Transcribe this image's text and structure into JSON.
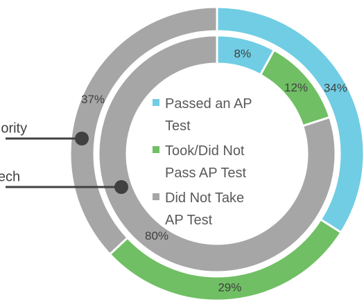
{
  "chart_data": {
    "type": "donut",
    "categories": [
      "Passed an AP Test",
      "Took/Did Not Pass AP Test",
      "Did Not Take AP Test"
    ],
    "colors": [
      "#70cde4",
      "#70bf64",
      "#a6a6a6"
    ],
    "rings": [
      {
        "name": "Priority",
        "values": [
          34,
          29,
          37
        ],
        "value_labels": [
          "34%",
          "29%",
          "37%"
        ]
      },
      {
        "name": "Tech",
        "values": [
          8,
          12,
          80
        ],
        "value_labels": [
          "8%",
          "12%",
          "80%"
        ]
      }
    ]
  }
}
